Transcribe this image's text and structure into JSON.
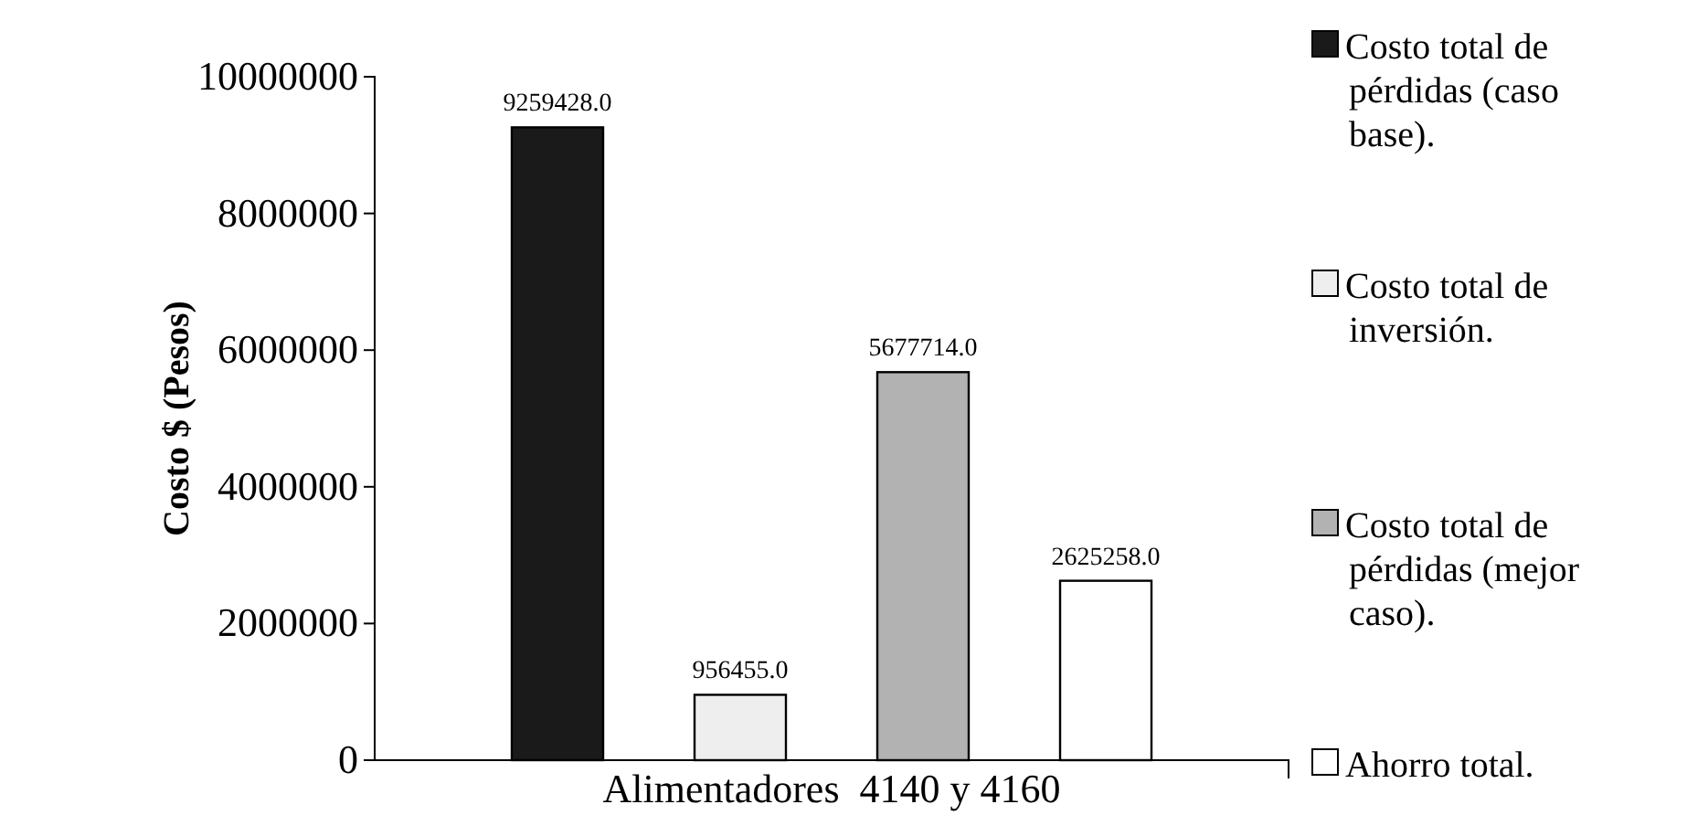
{
  "chart_data": {
    "type": "bar",
    "ylabel": "Costo $ (Pesos)",
    "categories": [
      "Alimentadores  4140 y 4160"
    ],
    "series": [
      {
        "name": "Costo total de pérdidas (caso base).",
        "color": "#1a1a1a",
        "values": [
          9259428
        ],
        "value_labels": [
          "9259428.0"
        ]
      },
      {
        "name": "Costo total de inversión.",
        "color": "#eeeeee",
        "values": [
          956455
        ],
        "value_labels": [
          "956455.0"
        ]
      },
      {
        "name": "Costo total de pérdidas (mejor caso).",
        "color": "#b2b2b2",
        "values": [
          5677714
        ],
        "value_labels": [
          "5677714.0"
        ]
      },
      {
        "name": "Ahorro total.",
        "color": "#ffffff",
        "values": [
          2625258
        ],
        "value_labels": [
          "2625258.0"
        ]
      }
    ],
    "ylim": [
      0,
      10000000
    ],
    "yticks": [
      0,
      2000000,
      4000000,
      6000000,
      8000000,
      10000000
    ],
    "grid": false,
    "legend": "right"
  }
}
